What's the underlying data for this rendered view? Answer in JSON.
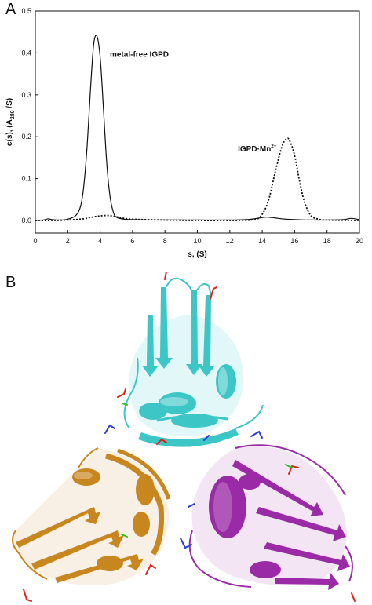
{
  "panels": {
    "a_label": "A",
    "b_label": "B"
  },
  "chart_data": {
    "type": "line",
    "xlabel": "s, (S)",
    "ylabel": "c(s), (A280 /S)",
    "ylabel_main": "c(s), (A",
    "ylabel_sub": "280",
    "ylabel_end": " /S)",
    "xlim": [
      0,
      20
    ],
    "ylim": [
      -0.03,
      0.5
    ],
    "xticks": [
      0,
      2,
      4,
      6,
      8,
      10,
      12,
      14,
      16,
      18,
      20
    ],
    "yticks": [
      0.0,
      0.1,
      0.2,
      0.3,
      0.4,
      0.5
    ],
    "ytick_labels": [
      "0.0",
      "0.1",
      "0.2",
      "0.3",
      "0.4",
      "0.5"
    ],
    "grid": false,
    "annotations": [
      {
        "text": "metal-free IGPD",
        "x": 4.6,
        "y": 0.39
      },
      {
        "text": "IGPD·Mn",
        "sup": "2+",
        "x": 12.5,
        "y": 0.165
      }
    ],
    "series": [
      {
        "style": "solid",
        "x": [
          0.0,
          0.5,
          0.8,
          1.0,
          1.5,
          2.0,
          2.5,
          2.8,
          3.0,
          3.2,
          3.4,
          3.6,
          3.8,
          4.0,
          4.2,
          4.4,
          4.6,
          4.8,
          5.0,
          5.5,
          6.0,
          7.0,
          8.0,
          10.0,
          12.0,
          13.0,
          13.5,
          14.0,
          14.3,
          14.6,
          15.0,
          15.5,
          16.0,
          17.0,
          18.0,
          19.0,
          19.5,
          20.0
        ],
        "y": [
          0.0,
          0.001,
          0.004,
          0.002,
          0.001,
          0.003,
          0.012,
          0.035,
          0.085,
          0.18,
          0.31,
          0.42,
          0.44,
          0.39,
          0.27,
          0.14,
          0.06,
          0.022,
          0.008,
          0.003,
          0.002,
          0.001,
          0.001,
          0.001,
          0.001,
          0.002,
          0.004,
          0.007,
          0.008,
          0.007,
          0.005,
          0.003,
          0.002,
          0.001,
          0.001,
          0.002,
          0.005,
          0.002
        ]
      },
      {
        "style": "dotted",
        "x": [
          0.0,
          1.0,
          2.0,
          3.0,
          3.5,
          4.0,
          4.5,
          5.0,
          5.5,
          6.0,
          8.0,
          10.0,
          12.0,
          13.5,
          14.0,
          14.4,
          14.8,
          15.2,
          15.5,
          15.7,
          16.0,
          16.3,
          16.6,
          17.0,
          17.5,
          18.0,
          20.0
        ],
        "y": [
          0.0,
          0.0,
          0.001,
          0.004,
          0.008,
          0.011,
          0.012,
          0.009,
          0.005,
          0.003,
          0.001,
          0.0,
          0.0,
          0.002,
          0.015,
          0.05,
          0.115,
          0.175,
          0.195,
          0.19,
          0.155,
          0.095,
          0.045,
          0.012,
          0.003,
          0.001,
          0.0
        ]
      }
    ]
  },
  "structure": {
    "colors": {
      "subunit_top": "#3cc6c6",
      "subunit_left": "#c8861e",
      "subunit_right": "#9a2aa6",
      "ligand_red": "#e0241c",
      "ligand_blue": "#2a3ad8",
      "ligand_green": "#2ac02a"
    }
  }
}
